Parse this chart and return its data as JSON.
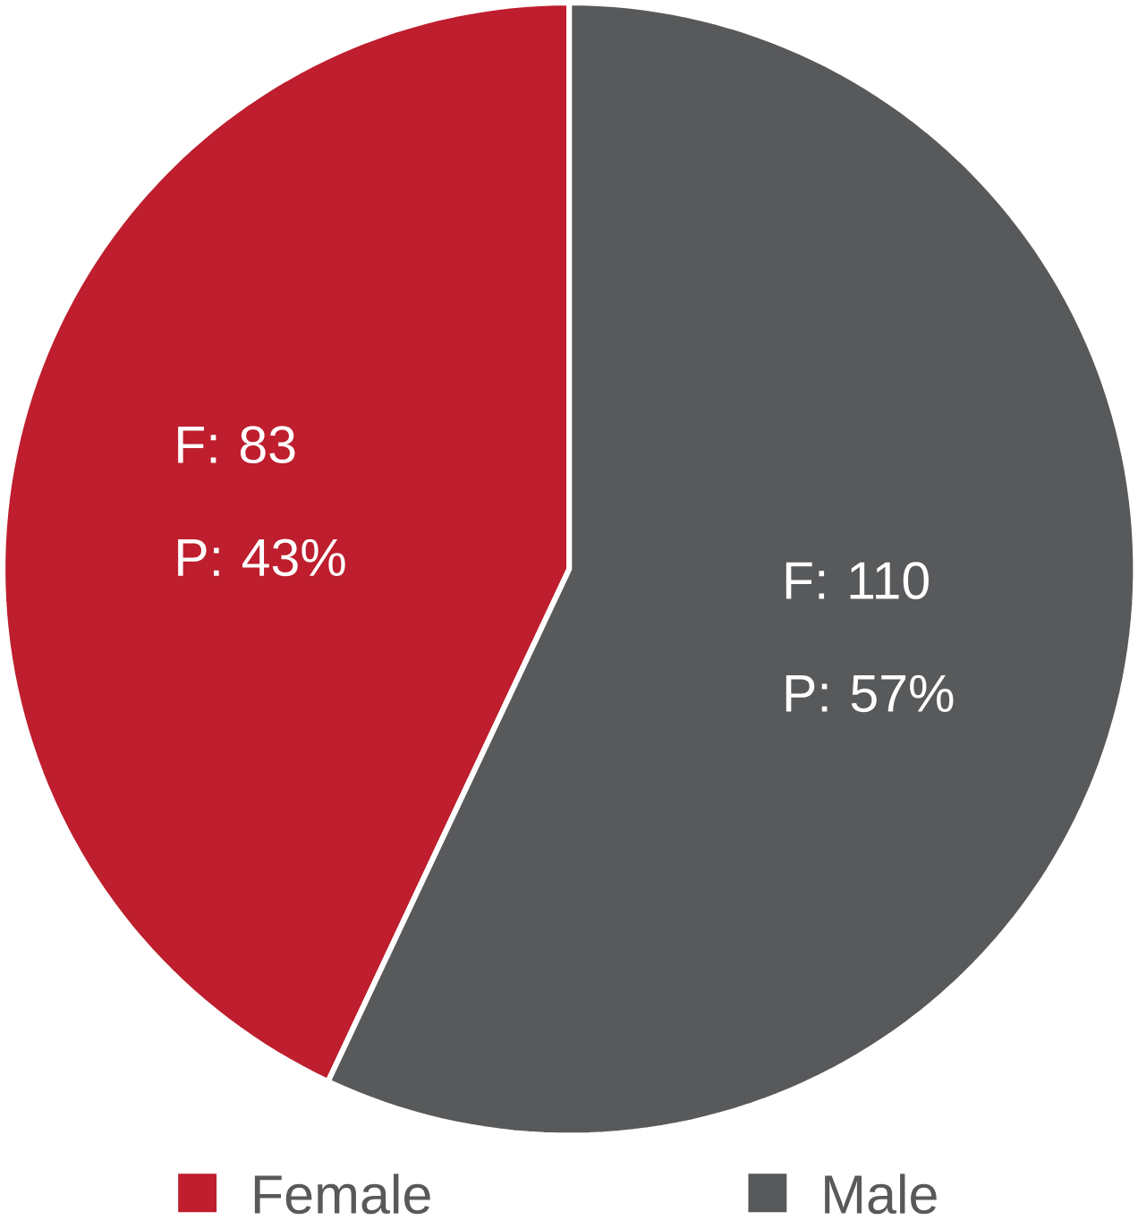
{
  "chart_data": {
    "type": "pie",
    "categories": [
      "Female",
      "Male"
    ],
    "values": [
      43,
      57
    ],
    "colors": [
      "#be1e2d",
      "#58595b"
    ],
    "value_labels": [
      "F: 83 P: 43%",
      "F: 110 P: 57%"
    ],
    "legend": "bottom"
  }
}
